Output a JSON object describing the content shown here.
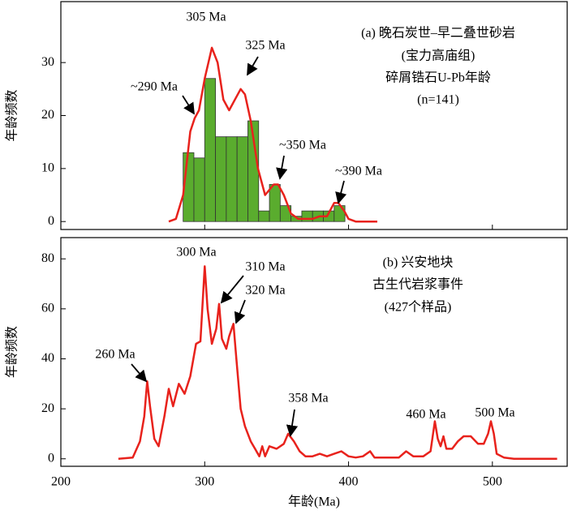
{
  "chart_data": [
    {
      "type": "histogram",
      "legend_lines": [
        "(a) 晚石炭世–早二叠世砂岩",
        "(宝力高庙组)",
        "碎屑锆石U-Pb年龄",
        "(n=141)"
      ],
      "ylabel": "年龄频数",
      "bins": [
        285,
        292.5,
        300,
        307.5,
        315,
        322.5,
        330,
        337.5,
        345,
        352.5,
        360,
        367.5,
        375,
        382.5,
        390,
        397.5
      ],
      "values": [
        13,
        12,
        27,
        16,
        16,
        16,
        19,
        2,
        7,
        3,
        1,
        2,
        2,
        2,
        3
      ],
      "color": "#5aac2e",
      "kde": {
        "color": "#e8221c",
        "x": [
          275,
          280,
          285,
          290,
          293,
          296,
          300,
          305,
          309,
          313,
          317,
          320,
          325,
          328,
          332,
          337,
          342,
          348,
          351,
          355,
          360,
          365,
          370,
          375,
          380,
          385,
          390,
          393,
          397,
          400,
          405,
          420
        ],
        "values": [
          0,
          0.5,
          5,
          17,
          19.5,
          21,
          27,
          32.8,
          30,
          23,
          21,
          22.5,
          25,
          24,
          19,
          10,
          5,
          7,
          7,
          5,
          1.5,
          0.5,
          0.5,
          0.5,
          1,
          1,
          3.5,
          3.5,
          2,
          0.5,
          0,
          0
        ]
      },
      "annotations": [
        "305 Ma",
        "325 Ma",
        "~290 Ma",
        "~350 Ma",
        "~390 Ma"
      ],
      "xlim": [
        200,
        552
      ],
      "xticks": [
        200,
        300,
        400,
        500
      ],
      "ylim": [
        -1.5,
        41.5
      ],
      "yticks": [
        0,
        10,
        20,
        30
      ]
    },
    {
      "type": "line",
      "legend_lines": [
        "(b) 兴安地块",
        "古生代岩浆事件",
        "(427个样品)"
      ],
      "ylabel": "年龄频数",
      "xlabel": "年龄(Ma)",
      "color": "#e8221c",
      "x": [
        240,
        250,
        255,
        258,
        260,
        262,
        265,
        268,
        272,
        275,
        278,
        282,
        286,
        290,
        294,
        297,
        300,
        302,
        305,
        308,
        310,
        312,
        315,
        317,
        320,
        322,
        325,
        328,
        332,
        335,
        338,
        340,
        342,
        345,
        350,
        355,
        358,
        362,
        366,
        370,
        375,
        380,
        385,
        390,
        395,
        400,
        405,
        410,
        415,
        418,
        425,
        435,
        440,
        445,
        452,
        457,
        460,
        462,
        464,
        466,
        468,
        472,
        476,
        480,
        485,
        490,
        494,
        497,
        499,
        501,
        503,
        508,
        515,
        545
      ],
      "values": [
        0,
        0.5,
        7,
        17,
        31,
        21,
        8,
        5,
        17,
        28,
        21,
        30,
        26,
        33,
        46,
        47,
        77,
        60,
        46,
        52,
        62,
        48,
        44,
        49,
        54,
        40,
        20,
        13,
        7,
        4,
        1,
        5,
        1,
        5,
        4,
        6,
        10,
        7,
        3,
        1,
        1,
        2,
        1,
        2,
        3,
        1,
        0.5,
        1,
        3,
        0.5,
        0.5,
        0.5,
        3,
        1,
        1,
        3,
        15,
        8,
        5,
        9,
        4,
        4,
        7,
        9,
        9,
        6,
        6,
        10,
        15,
        10,
        2,
        0.5,
        0,
        0
      ],
      "annotations": [
        "300 Ma",
        "310 Ma",
        "320 Ma",
        "260 Ma",
        "358 Ma",
        "460 Ma",
        "500 Ma"
      ],
      "xlim": [
        200,
        552
      ],
      "xticks": [
        200,
        300,
        400,
        500
      ],
      "ylim": [
        -3,
        88.5
      ],
      "yticks": [
        0,
        20,
        40,
        60,
        80
      ]
    }
  ]
}
